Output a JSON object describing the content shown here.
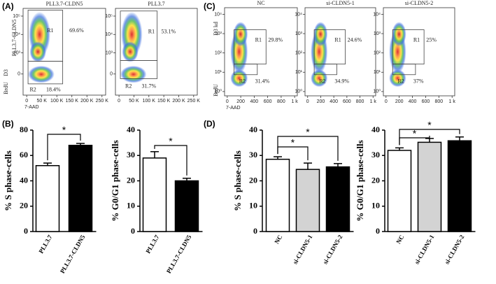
{
  "panel_labels": [
    "(A)",
    "(B)",
    "(C)",
    "(D)"
  ],
  "chart_data": [
    {
      "type": "flow",
      "title": "PLL3.7-CLDN5",
      "ylabel": [
        "BrdU",
        "D3",
        "PLL3.7-CLDN5"
      ],
      "xlabel": "7-AAD",
      "xlim": [
        -12000,
        262144
      ],
      "xticks": [
        0,
        {
          "value": 50000,
          "label": "50 K"
        },
        {
          "value": 100000,
          "label": "100 K"
        },
        {
          "value": 150000,
          "label": "150 K"
        },
        {
          "value": 200000,
          "label": "200 K"
        },
        {
          "value": 250000,
          "label": "250 K"
        }
      ],
      "yscale": "biexponential",
      "ylim": [
        -1000,
        262144
      ],
      "yticks": [
        0,
        {
          "value": 1000,
          "label": "10³"
        },
        {
          "value": 10000,
          "label": "10⁴"
        },
        {
          "value": 100000,
          "label": "10⁵"
        }
      ],
      "gates": [
        "R1",
        "R2"
      ],
      "values": [
        69.6,
        18.4
      ],
      "value_labels": [
        "69.6%",
        "18.4%"
      ]
    },
    {
      "type": "flow",
      "title": "PLL3.7",
      "xlim": [
        -12000,
        262144
      ],
      "xticks": [
        0,
        {
          "value": 50000,
          "label": "50 K"
        },
        {
          "value": 100000,
          "label": "100 K"
        },
        {
          "value": 150000,
          "label": "150 K"
        },
        {
          "value": 200000,
          "label": "200 K"
        },
        {
          "value": 250000,
          "label": "250 K"
        }
      ],
      "yscale": "biexponential",
      "ylim": [
        -1000,
        262144
      ],
      "yticks": [
        0,
        {
          "value": 1000,
          "label": "10³"
        },
        {
          "value": 10000,
          "label": "10⁴"
        },
        {
          "value": 100000,
          "label": "10⁵"
        }
      ],
      "gates": [
        "R1",
        "R2"
      ],
      "values": [
        53.1,
        31.7
      ],
      "value_labels": [
        "53.1%",
        "31.7%"
      ]
    },
    {
      "type": "flow",
      "title": "NC",
      "ylabel": [
        "BrdU",
        "D3 kd"
      ],
      "xlabel": "7-AAD",
      "xlim": [
        -40,
        1040
      ],
      "xticks": [
        0,
        200,
        400,
        600,
        800,
        {
          "value": 1000,
          "label": "1 k"
        }
      ],
      "yscale": "log",
      "ylim": [
        0.6,
        22000
      ],
      "yticks": [
        {
          "value": 1,
          "label": "10⁰"
        },
        {
          "value": 10,
          "label": "10¹"
        },
        {
          "value": 100,
          "label": "10²"
        },
        {
          "value": 1000,
          "label": "10³"
        },
        {
          "value": 10000,
          "label": "10⁴"
        }
      ],
      "gates": [
        "R1",
        "R2"
      ],
      "values": [
        29.8,
        31.4
      ],
      "value_labels": [
        "29.8%",
        "31.4%"
      ]
    },
    {
      "type": "flow",
      "title": "si-CLDN5-1",
      "xlim": [
        -40,
        1040
      ],
      "xticks": [
        0,
        200,
        400,
        600,
        800,
        {
          "value": 1000,
          "label": "1 k"
        }
      ],
      "yscale": "log",
      "ylim": [
        0.6,
        22000
      ],
      "yticks": [
        {
          "value": 1,
          "label": "10⁰"
        },
        {
          "value": 10,
          "label": "10¹"
        },
        {
          "value": 100,
          "label": "10²"
        },
        {
          "value": 1000,
          "label": "10³"
        },
        {
          "value": 10000,
          "label": "10⁴"
        }
      ],
      "gates": [
        "R1",
        "R2"
      ],
      "values": [
        24.6,
        34.9
      ],
      "value_labels": [
        "24.6%",
        "34.9%"
      ]
    },
    {
      "type": "flow",
      "title": "si-CLDN5-2",
      "xlim": [
        -40,
        1040
      ],
      "xticks": [
        0,
        200,
        400,
        600,
        800,
        {
          "value": 1000,
          "label": "1 k"
        }
      ],
      "yscale": "log",
      "ylim": [
        0.6,
        22000
      ],
      "yticks": [
        {
          "value": 1,
          "label": "10⁰"
        },
        {
          "value": 10,
          "label": "10¹"
        },
        {
          "value": 100,
          "label": "10²"
        },
        {
          "value": 1000,
          "label": "10³"
        },
        {
          "value": 10000,
          "label": "10⁴"
        }
      ],
      "gates": [
        "R1",
        "R2"
      ],
      "values": [
        25,
        37
      ],
      "value_labels": [
        "25%",
        "37%"
      ]
    },
    {
      "type": "bar",
      "ylabel": "% S phase-cells",
      "categories": [
        "PLL3.7",
        "PLL3.7-CLDN5"
      ],
      "values": [
        52,
        68
      ],
      "errors": [
        2,
        1.5
      ],
      "colors": [
        "#ffffff",
        "#000000"
      ],
      "ylim": [
        0,
        80
      ],
      "yticks": [
        0,
        20,
        40,
        60,
        80
      ],
      "annotations": [
        "*"
      ]
    },
    {
      "type": "bar",
      "ylabel": "% G0/G1 phase-cells",
      "categories": [
        "PLL3.7",
        "PLL3.7-CLDN5"
      ],
      "values": [
        29,
        20
      ],
      "errors": [
        2.5,
        1
      ],
      "colors": [
        "#ffffff",
        "#000000"
      ],
      "ylim": [
        0,
        40
      ],
      "yticks": [
        0,
        10,
        20,
        30,
        40
      ],
      "annotations": [
        "*"
      ]
    },
    {
      "type": "bar",
      "ylabel": "% S phase-cells",
      "categories": [
        "NC",
        "si-CLDN5-1",
        "si-CLDN5-2"
      ],
      "values": [
        28.5,
        24.5,
        25.5
      ],
      "errors": [
        1,
        2.5,
        1.3
      ],
      "colors": [
        "#ffffff",
        "#d3d3d3",
        "#000000"
      ],
      "ylim": [
        0,
        40
      ],
      "yticks": [
        0,
        10,
        20,
        30,
        40
      ],
      "annotations": [
        "*",
        "*"
      ]
    },
    {
      "type": "bar",
      "ylabel": "% G0/G1 phase-cells",
      "categories": [
        "NC",
        "si-CLDN5-1",
        "si-CLDN5-2"
      ],
      "values": [
        32,
        35.2,
        35.8
      ],
      "errors": [
        1,
        1.5,
        1.5
      ],
      "colors": [
        "#ffffff",
        "#d3d3d3",
        "#000000"
      ],
      "ylim": [
        0,
        40
      ],
      "yticks": [
        0,
        10,
        20,
        30,
        40
      ],
      "annotations": [
        "*",
        "*"
      ]
    }
  ]
}
